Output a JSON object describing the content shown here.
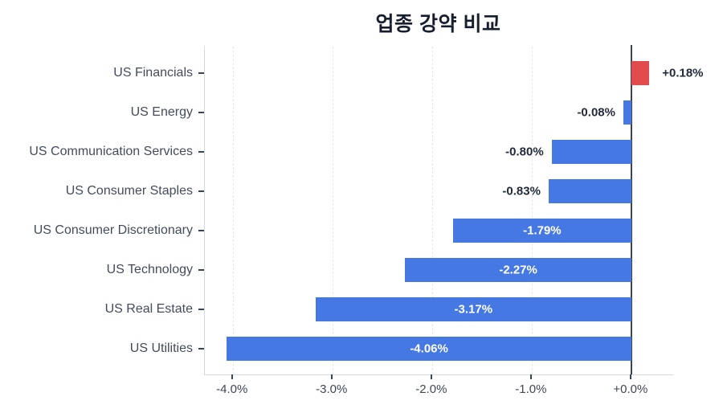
{
  "chart_data": {
    "type": "bar",
    "orientation": "horizontal",
    "title": "업종 강약 비교",
    "categories": [
      "US Financials",
      "US Energy",
      "US Communication Services",
      "US Consumer Staples",
      "US Consumer Discretionary",
      "US Technology",
      "US Real Estate",
      "US Utilities"
    ],
    "values": [
      0.18,
      -0.08,
      -0.8,
      -0.83,
      -1.79,
      -2.27,
      -3.17,
      -4.06
    ],
    "value_labels": [
      "+0.18%",
      "-0.08%",
      "-0.80%",
      "-0.83%",
      "-1.79%",
      "-2.27%",
      "-3.17%",
      "-4.06%"
    ],
    "x_tick_labels": [
      "-4.0%",
      "-3.0%",
      "-2.0%",
      "-1.0%",
      "+0.0%"
    ],
    "x_tick_values": [
      -4.0,
      -3.0,
      -2.0,
      -1.0,
      0.0
    ],
    "xlim": [
      -4.28,
      0.42
    ],
    "xlabel": "",
    "ylabel": "",
    "legend": "none",
    "grid": "dashed-vertical",
    "colors": {
      "positive_bar": "#e14b4b",
      "negative_bar": "#4678e4",
      "zero_line": "#3b4454",
      "axis_line": "#d5d8dd",
      "gridline": "#e6e8ec",
      "title_text": "#171e2e",
      "category_text": "#434c5c",
      "tick_text": "#3e4756",
      "value_text_outside": "#222b3a",
      "value_text_inside": "#ffffff"
    }
  }
}
